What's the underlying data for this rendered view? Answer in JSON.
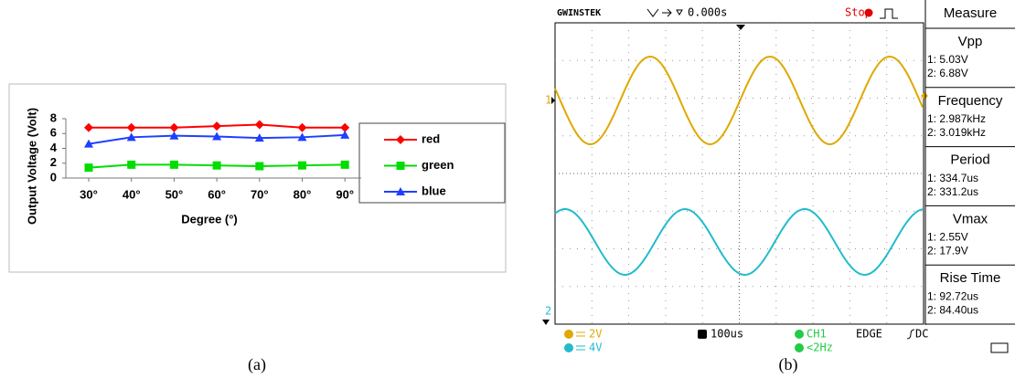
{
  "chart_data": [
    {
      "type": "line",
      "ylabel": "Output Voltage (Volt)",
      "xlabel": "Degree (°)",
      "categories": [
        "30°",
        "40°",
        "50°",
        "60°",
        "70°",
        "80°",
        "90°"
      ],
      "series": [
        {
          "name": "red",
          "color": "#ff0000",
          "marker": "diamond",
          "values": [
            6.8,
            6.8,
            6.8,
            7.0,
            7.2,
            6.8,
            6.8
          ]
        },
        {
          "name": "green",
          "color": "#00dd00",
          "marker": "square",
          "values": [
            1.4,
            1.8,
            1.8,
            1.7,
            1.6,
            1.7,
            1.8
          ]
        },
        {
          "name": "blue",
          "color": "#1f3fff",
          "marker": "triangle",
          "values": [
            4.6,
            5.5,
            5.7,
            5.6,
            5.4,
            5.5,
            5.8
          ]
        }
      ],
      "ylim": [
        0,
        8
      ],
      "yticks": [
        0,
        2,
        4,
        6,
        8
      ],
      "grid": false,
      "legend": "right"
    }
  ],
  "captions": [
    "(a)",
    "(b)"
  ],
  "scope": {
    "brand": "GWINSTEK",
    "time_offset": "0.000s",
    "status": "Stop",
    "panel_title": "Measure",
    "measurements": [
      {
        "name": "Vpp",
        "ch1": "1: 5.03V",
        "ch2": "2: 6.88V"
      },
      {
        "name": "Frequency",
        "ch1": "1: 2.987kHz",
        "ch2": "2: 3.019kHz"
      },
      {
        "name": "Period",
        "ch1": "1: 334.7us",
        "ch2": "2: 331.2us"
      },
      {
        "name": "Vmax",
        "ch1": "1: 2.55V",
        "ch2": "2: 17.9V"
      },
      {
        "name": "Rise Time",
        "ch1": "1: 92.72us",
        "ch2": "2: 84.40us"
      }
    ],
    "channel_markers": [
      "1",
      "2"
    ],
    "ch1_scale": "2V",
    "ch2_scale": "4V",
    "timebase": "100us",
    "trigger_source": "CH1",
    "trigger_type": "EDGE",
    "coupling": "DC",
    "trigger_freq": "<2Hz"
  }
}
